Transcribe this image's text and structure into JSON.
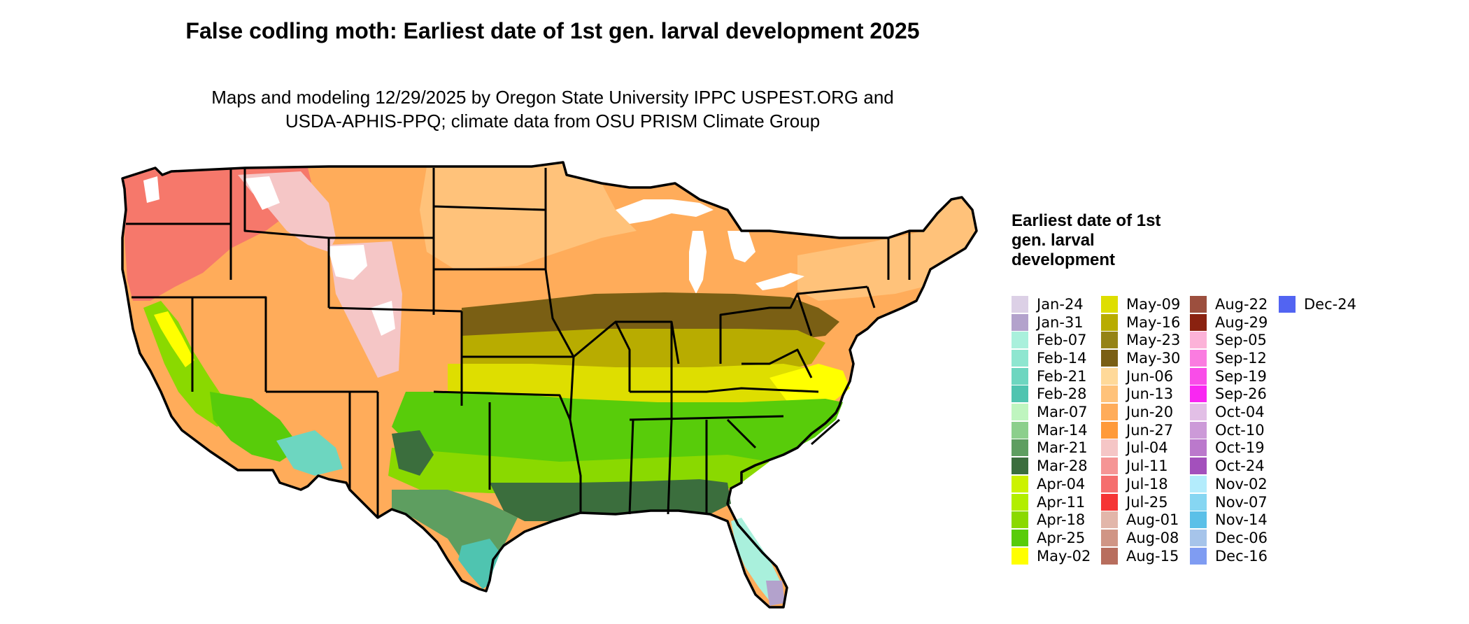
{
  "title": "False codling moth: Earliest date of 1st gen. larval development 2025",
  "subtitle_line1": "Maps and modeling 12/29/2025 by Oregon State University IPPC USPEST.ORG and",
  "subtitle_line2": "USDA-APHIS-PPQ; climate data from OSU PRISM Climate Group",
  "legend": {
    "title": "Earliest date of 1st gen. larval development",
    "items": [
      {
        "label": "Jan-24",
        "color": "#dcd0e6"
      },
      {
        "label": "Jan-31",
        "color": "#b3a2cc"
      },
      {
        "label": "Feb-07",
        "color": "#a9f0dc"
      },
      {
        "label": "Feb-14",
        "color": "#8ee6d0"
      },
      {
        "label": "Feb-21",
        "color": "#6dd6c0"
      },
      {
        "label": "Feb-28",
        "color": "#4fc4b0"
      },
      {
        "label": "Mar-07",
        "color": "#bff5bf"
      },
      {
        "label": "Mar-14",
        "color": "#8ccf8c"
      },
      {
        "label": "Mar-21",
        "color": "#5e9e60"
      },
      {
        "label": "Mar-28",
        "color": "#3b6e3d"
      },
      {
        "label": "Apr-04",
        "color": "#ccf200"
      },
      {
        "label": "Apr-11",
        "color": "#b2ee00"
      },
      {
        "label": "Apr-18",
        "color": "#8ad900"
      },
      {
        "label": "Apr-25",
        "color": "#58cc0a"
      },
      {
        "label": "May-02",
        "color": "#ffff00"
      },
      {
        "label": "May-09",
        "color": "#dede00"
      },
      {
        "label": "May-16",
        "color": "#b8ac00"
      },
      {
        "label": "May-23",
        "color": "#958316"
      },
      {
        "label": "May-30",
        "color": "#7a5f14"
      },
      {
        "label": "Jun-06",
        "color": "#ffd999"
      },
      {
        "label": "Jun-13",
        "color": "#ffc27a"
      },
      {
        "label": "Jun-20",
        "color": "#ffac5a"
      },
      {
        "label": "Jun-27",
        "color": "#ff9a3a"
      },
      {
        "label": "Jul-04",
        "color": "#f5c6c6"
      },
      {
        "label": "Jul-11",
        "color": "#f59595"
      },
      {
        "label": "Jul-18",
        "color": "#f56e6e"
      },
      {
        "label": "Jul-25",
        "color": "#f53535"
      },
      {
        "label": "Aug-01",
        "color": "#e2b6aa"
      },
      {
        "label": "Aug-08",
        "color": "#d09585"
      },
      {
        "label": "Aug-15",
        "color": "#b86e5e"
      },
      {
        "label": "Aug-22",
        "color": "#9c4f3e"
      },
      {
        "label": "Aug-29",
        "color": "#8a2210"
      },
      {
        "label": "Sep-05",
        "color": "#fcb2d8"
      },
      {
        "label": "Sep-12",
        "color": "#fa7ce0"
      },
      {
        "label": "Sep-19",
        "color": "#f94de8"
      },
      {
        "label": "Sep-26",
        "color": "#f927f2"
      },
      {
        "label": "Oct-04",
        "color": "#e2bfe6"
      },
      {
        "label": "Oct-10",
        "color": "#cc9ad8"
      },
      {
        "label": "Oct-19",
        "color": "#bb79cc"
      },
      {
        "label": "Oct-24",
        "color": "#a350bc"
      },
      {
        "label": "Nov-02",
        "color": "#b3ecfc"
      },
      {
        "label": "Nov-07",
        "color": "#86d6f2"
      },
      {
        "label": "Nov-14",
        "color": "#5bc0e8"
      },
      {
        "label": "Dec-06",
        "color": "#a6c4ea"
      },
      {
        "label": "Dec-16",
        "color": "#7f9cf2"
      },
      {
        "label": "Dec-24",
        "color": "#5264f2"
      }
    ]
  }
}
